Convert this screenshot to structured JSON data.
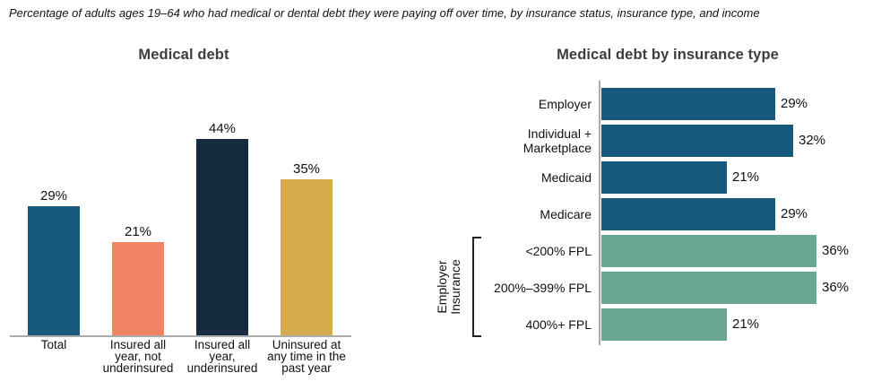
{
  "caption": "Percentage of adults ages 19–64 who had medical or dental debt they were paying off over time, by insurance status, insurance type, and income",
  "colors": {
    "blue": "#175A7E",
    "salmon": "#F08465",
    "navy": "#162A40",
    "gold": "#D5AB4D",
    "green": "#69A795",
    "axis": "#ABABAB",
    "bracket": "#222222",
    "title_text": "#3D3D3D",
    "label_text": "#111111"
  },
  "chart_data": [
    {
      "type": "bar",
      "orientation": "vertical",
      "title": "Medical debt",
      "categories": [
        "Total",
        "Insured all\nyear, not\nunderinsured",
        "Insured all\nyear,\nunderinsured",
        "Uninsured at\nany time in the\npast year"
      ],
      "values": [
        29,
        21,
        44,
        35
      ],
      "value_labels": [
        "29%",
        "21%",
        "44%",
        "35%"
      ],
      "unit": "%",
      "bar_colors": [
        "#175A7E",
        "#F08465",
        "#162A40",
        "#D5AB4D"
      ],
      "ylim": [
        0,
        50
      ],
      "grid": false,
      "legend": "none"
    },
    {
      "type": "bar",
      "orientation": "horizontal",
      "title": "Medical debt by insurance type",
      "categories": [
        "Employer",
        "Individual +\nMarketplace",
        "Medicaid",
        "Medicare",
        "<200% FPL",
        "200%–399% FPL",
        "400%+ FPL"
      ],
      "values": [
        29,
        32,
        21,
        29,
        36,
        36,
        21
      ],
      "value_labels": [
        "29%",
        "32%",
        "21%",
        "29%",
        "36%",
        "36%",
        "21%"
      ],
      "unit": "%",
      "bar_colors": [
        "#175A7E",
        "#175A7E",
        "#175A7E",
        "#175A7E",
        "#69A795",
        "#69A795",
        "#69A795"
      ],
      "group_label": "Employer\nInsurance",
      "group_start_index": 4,
      "group_end_index": 6,
      "xlim": [
        0,
        45
      ],
      "grid": false,
      "legend": "none"
    }
  ]
}
